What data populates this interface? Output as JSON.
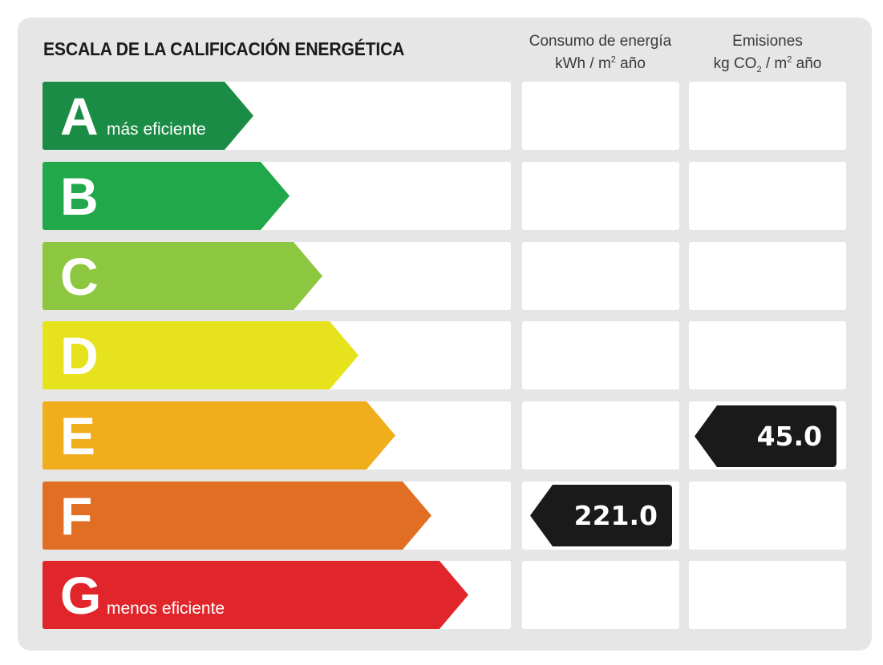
{
  "title": "ESCALA DE LA CALIFICACIÓN ENERGÉTICA",
  "consumption_header": {
    "line1": "Consumo de energía",
    "line2_prefix": "kWh / m",
    "line2_sup": "2",
    "line2_suffix": " año"
  },
  "emissions_header": {
    "line1": "Emisiones",
    "line2_prefix": "kg CO",
    "line2_sub": "2",
    "line2_mid": " / m",
    "line2_sup": "2",
    "line2_suffix": " año"
  },
  "ratings": [
    {
      "letter": "A",
      "note": "más eficiente",
      "color": "#1a8c45"
    },
    {
      "letter": "B",
      "note": "",
      "color": "#21a84a"
    },
    {
      "letter": "C",
      "note": "",
      "color": "#8dc63f"
    },
    {
      "letter": "D",
      "note": "",
      "color": "#e6e21c"
    },
    {
      "letter": "E",
      "note": "",
      "color": "#f0ae1c"
    },
    {
      "letter": "F",
      "note": "",
      "color": "#e06f24"
    },
    {
      "letter": "G",
      "note": "menos eficiente",
      "color": "#e0262a"
    }
  ],
  "consumption_rating": "F",
  "consumption_value": "221.0",
  "emissions_rating": "E",
  "emissions_value": "45.0",
  "marker_color": "#1a1a1a"
}
